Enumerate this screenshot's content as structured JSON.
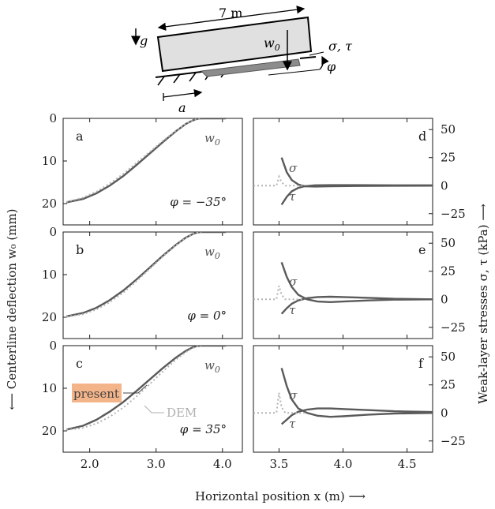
{
  "sketch": {
    "length_label": "7 m",
    "g_label": "g",
    "w0_label": "w",
    "w0_sub": "0",
    "stress_label": "σ, τ",
    "phi_label": "φ",
    "a_label": "a"
  },
  "labels": {
    "xlabel": "Horizontal position x (m)  ⟶",
    "ylabel_left": "⟵  Centerline deflection w₀ (mm)",
    "ylabel_right": "Weak-layer stresses σ, τ (kPa)  ⟶",
    "w0_curve": "w",
    "w0_curve_sub": "0",
    "sigma": "σ",
    "tau": "τ",
    "present": "present",
    "dem": "DEM"
  },
  "colors": {
    "present": "#5a5a5a",
    "dem": "#b4b4b4",
    "present_highlight": "#f4b48a"
  },
  "chart_data": [
    {
      "panel": "a",
      "type": "line",
      "angle_label": "φ = −35°",
      "xlim": [
        1.6,
        4.3
      ],
      "ylim": [
        0,
        25
      ],
      "y_inverted": true,
      "xticks": [
        "2.0",
        "3.0",
        "4.0"
      ],
      "yticks": [
        "0",
        "10",
        "20"
      ],
      "series": [
        {
          "name": "present",
          "x": [
            1.65,
            1.9,
            2.1,
            2.3,
            2.5,
            2.7,
            2.9,
            3.1,
            3.3,
            3.45,
            3.55,
            3.62,
            3.68,
            3.75,
            3.9,
            4.05
          ],
          "y": [
            19.7,
            18.9,
            17.6,
            15.8,
            13.6,
            11.0,
            8.3,
            5.6,
            3.0,
            1.3,
            0.5,
            0.1,
            0.0,
            0.0,
            0.0,
            0.0
          ]
        },
        {
          "name": "DEM",
          "x": [
            1.65,
            1.9,
            2.1,
            2.3,
            2.5,
            2.7,
            2.9,
            3.1,
            3.3,
            3.45,
            3.55,
            3.62,
            3.68
          ],
          "y": [
            19.6,
            18.6,
            17.2,
            15.3,
            13.1,
            10.5,
            7.9,
            5.3,
            2.9,
            1.3,
            0.5,
            0.1,
            0.0
          ]
        }
      ]
    },
    {
      "panel": "b",
      "type": "line",
      "angle_label": "φ = 0°",
      "xlim": [
        1.6,
        4.3
      ],
      "ylim": [
        0,
        25
      ],
      "y_inverted": true,
      "xticks": [
        "2.0",
        "3.0",
        "4.0"
      ],
      "yticks": [
        "0",
        "10",
        "20"
      ],
      "series": [
        {
          "name": "present",
          "x": [
            1.65,
            1.9,
            2.1,
            2.3,
            2.5,
            2.7,
            2.9,
            3.1,
            3.3,
            3.45,
            3.55,
            3.62,
            3.68,
            3.75,
            3.9,
            4.05
          ],
          "y": [
            19.8,
            19.0,
            17.8,
            16.0,
            13.8,
            11.2,
            8.4,
            5.6,
            3.0,
            1.3,
            0.5,
            0.1,
            0.0,
            0.0,
            0.0,
            0.0
          ]
        },
        {
          "name": "DEM",
          "x": [
            1.65,
            1.9,
            2.1,
            2.3,
            2.5,
            2.7,
            2.9,
            3.1,
            3.3,
            3.45,
            3.55,
            3.62,
            3.68
          ],
          "y": [
            19.9,
            19.3,
            18.2,
            16.5,
            14.3,
            11.6,
            8.7,
            5.8,
            3.1,
            1.4,
            0.5,
            0.1,
            0.0
          ]
        }
      ]
    },
    {
      "panel": "c",
      "type": "line",
      "angle_label": "φ = 35°",
      "xlim": [
        1.6,
        4.3
      ],
      "ylim": [
        0,
        25
      ],
      "y_inverted": true,
      "xticks": [
        "2.0",
        "3.0",
        "4.0"
      ],
      "yticks": [
        "0",
        "10",
        "20"
      ],
      "series": [
        {
          "name": "present",
          "x": [
            1.65,
            1.9,
            2.1,
            2.3,
            2.5,
            2.7,
            2.9,
            3.1,
            3.3,
            3.45,
            3.55,
            3.62,
            3.68,
            3.75,
            3.9,
            4.05
          ],
          "y": [
            19.7,
            18.8,
            17.4,
            15.5,
            13.3,
            10.7,
            8.0,
            5.3,
            2.8,
            1.2,
            0.4,
            0.1,
            0.0,
            0.0,
            0.0,
            0.0
          ]
        },
        {
          "name": "DEM",
          "x": [
            1.65,
            1.9,
            2.1,
            2.3,
            2.5,
            2.7,
            2.9,
            3.1,
            3.3,
            3.45,
            3.55,
            3.62,
            3.68
          ],
          "y": [
            19.8,
            19.3,
            18.3,
            16.7,
            14.6,
            12.0,
            9.1,
            6.1,
            3.3,
            1.5,
            0.6,
            0.1,
            0.0
          ]
        }
      ]
    },
    {
      "panel": "d",
      "type": "line",
      "xlim": [
        3.3,
        4.7
      ],
      "ylim": [
        -35,
        60
      ],
      "xticks": [
        "3.5",
        "4.0",
        "4.5"
      ],
      "yticks": [
        "50",
        "25",
        "0",
        "−25"
      ],
      "series": [
        {
          "name": "σ (present)",
          "x": [
            3.52,
            3.56,
            3.6,
            3.65,
            3.7,
            3.78,
            3.9,
            4.1,
            4.4,
            4.7
          ],
          "y": [
            25,
            12,
            5,
            1,
            -0.5,
            -0.8,
            -0.6,
            -0.3,
            -0.1,
            0
          ]
        },
        {
          "name": "τ (present)",
          "x": [
            3.52,
            3.56,
            3.6,
            3.65,
            3.7,
            3.78,
            3.9,
            4.1,
            4.4,
            4.7
          ],
          "y": [
            -17,
            -10,
            -5,
            -2,
            -0.5,
            0.3,
            0.5,
            0.5,
            0.3,
            0.3
          ]
        },
        {
          "name": "DEM",
          "x": [
            3.3,
            3.35,
            3.4,
            3.45,
            3.48,
            3.5,
            3.52,
            3.55,
            3.6,
            3.7
          ],
          "y": [
            0,
            0,
            0,
            0,
            0,
            8,
            3,
            0,
            0,
            0
          ]
        }
      ]
    },
    {
      "panel": "e",
      "type": "line",
      "xlim": [
        3.3,
        4.7
      ],
      "ylim": [
        -35,
        60
      ],
      "xticks": [
        "3.5",
        "4.0",
        "4.5"
      ],
      "yticks": [
        "50",
        "25",
        "0",
        "−25"
      ],
      "series": [
        {
          "name": "σ (present)",
          "x": [
            3.52,
            3.56,
            3.6,
            3.65,
            3.72,
            3.8,
            3.9,
            4.0,
            4.2,
            4.4,
            4.7
          ],
          "y": [
            33,
            20,
            11,
            4,
            0,
            -2,
            -2.5,
            -2,
            -1,
            -0.3,
            0
          ]
        },
        {
          "name": "τ (present)",
          "x": [
            3.52,
            3.56,
            3.6,
            3.65,
            3.72,
            3.8,
            3.9,
            4.0,
            4.2,
            4.4,
            4.7
          ],
          "y": [
            -13,
            -8,
            -4,
            -1,
            1,
            2,
            2.3,
            2,
            1.3,
            0.5,
            0
          ]
        },
        {
          "name": "DEM",
          "x": [
            3.3,
            3.35,
            3.4,
            3.45,
            3.48,
            3.5,
            3.52,
            3.55,
            3.6,
            3.7
          ],
          "y": [
            0,
            0,
            0,
            0,
            0,
            12,
            4,
            0,
            0,
            0
          ]
        }
      ]
    },
    {
      "panel": "f",
      "type": "line",
      "xlim": [
        3.3,
        4.7
      ],
      "ylim": [
        -35,
        60
      ],
      "xticks": [
        "3.5",
        "4.0",
        "4.5"
      ],
      "yticks": [
        "50",
        "25",
        "0",
        "−25"
      ],
      "series": [
        {
          "name": "σ (present)",
          "x": [
            3.52,
            3.56,
            3.6,
            3.65,
            3.72,
            3.8,
            3.9,
            4.0,
            4.2,
            4.4,
            4.7
          ],
          "y": [
            40,
            24,
            12,
            4,
            0,
            -2.5,
            -3.5,
            -3,
            -1.5,
            -0.5,
            0
          ]
        },
        {
          "name": "τ (present)",
          "x": [
            3.52,
            3.56,
            3.6,
            3.65,
            3.72,
            3.8,
            3.9,
            4.0,
            4.2,
            4.4,
            4.7
          ],
          "y": [
            -10,
            -6,
            -2,
            1,
            3,
            4,
            4,
            3.5,
            2.5,
            1.5,
            0.8
          ]
        },
        {
          "name": "DEM",
          "x": [
            3.3,
            3.35,
            3.4,
            3.45,
            3.48,
            3.5,
            3.52,
            3.55,
            3.6,
            3.7
          ],
          "y": [
            0,
            0,
            0,
            0,
            0,
            18,
            5,
            0,
            0,
            0
          ]
        }
      ]
    }
  ]
}
